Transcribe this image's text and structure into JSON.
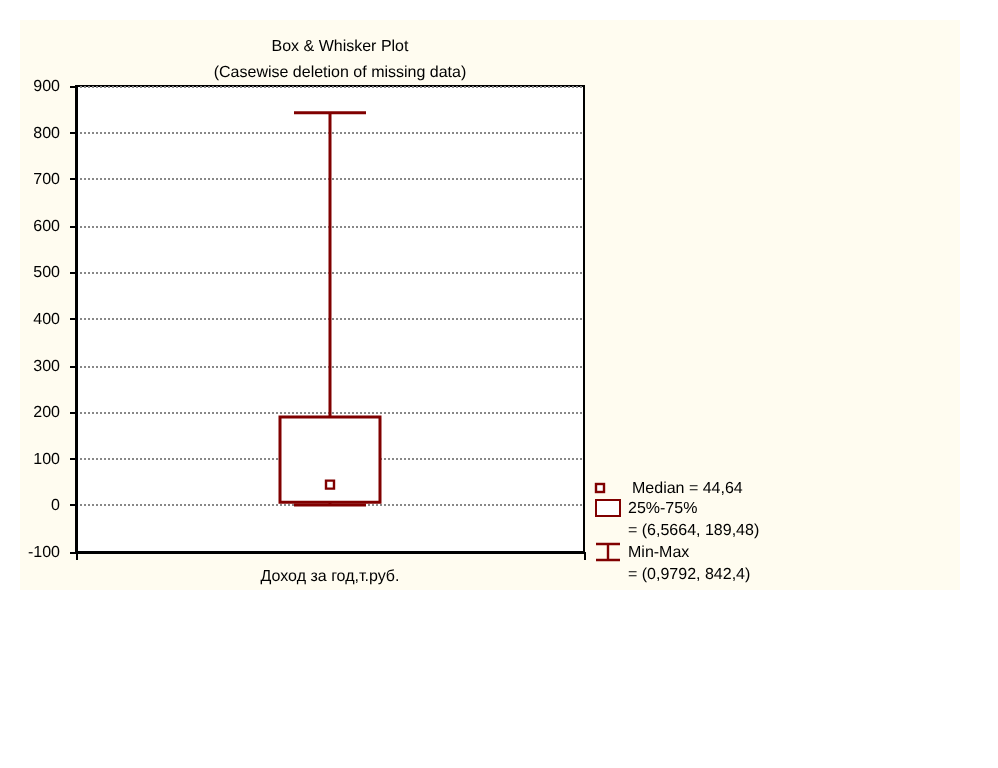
{
  "chart_data": {
    "type": "box",
    "title": "Box & Whisker Plot",
    "subtitle": "(Casewise deletion of missing data)",
    "categories": [
      "Доход за год,т.руб."
    ],
    "boxes": [
      {
        "low": 0.9792,
        "q1": 6.5664,
        "median": 44.64,
        "q3": 189.48,
        "high": 842.4
      }
    ],
    "color": "#800000",
    "ylim": [
      -100,
      900
    ],
    "yticks": [
      -100,
      0,
      100,
      200,
      300,
      400,
      500,
      600,
      700,
      800,
      900
    ],
    "grid": "y",
    "annotations": [
      "Median = 44,64",
      "25%-75%",
      "= (6,5664, 189,48)",
      "Min-Max",
      "= (0,9792, 842,4)"
    ]
  }
}
